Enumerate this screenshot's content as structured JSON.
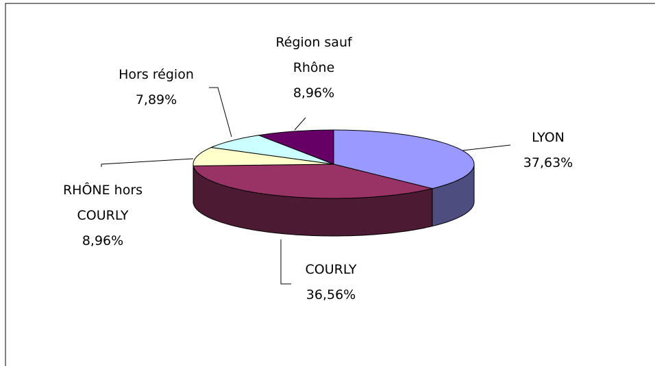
{
  "chart_data": {
    "type": "pie",
    "categories": [
      "LYON",
      "COURLY",
      "RHÔNE hors COURLY",
      "Hors région",
      "Région sauf Rhône"
    ],
    "values": [
      37.63,
      36.56,
      8.96,
      7.89,
      8.96
    ],
    "value_labels": [
      "37,63%",
      "36,56%",
      "8,96%",
      "7,89%",
      "8,96%"
    ],
    "colors": [
      "#9999ff",
      "#993366",
      "#ffffcc",
      "#ccffff",
      "#660066"
    ]
  }
}
